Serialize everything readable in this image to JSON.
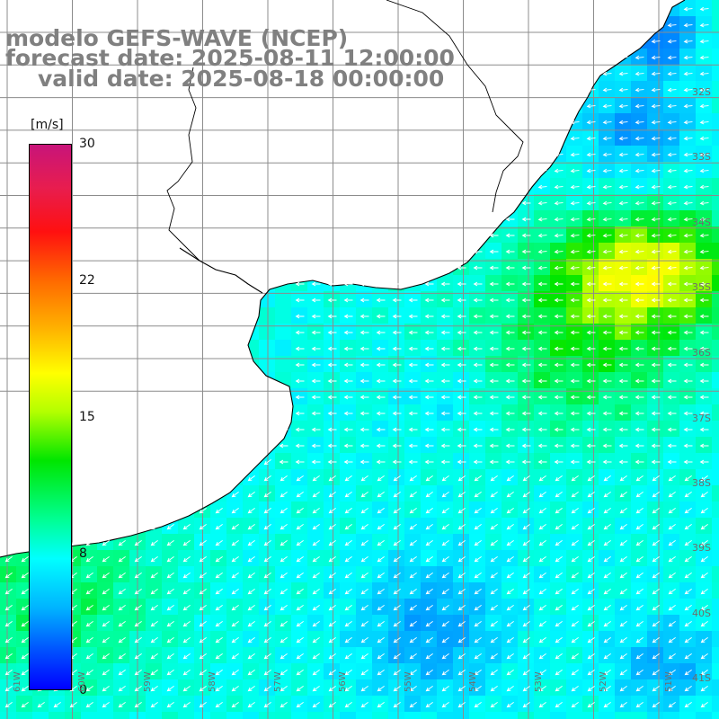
{
  "title": {
    "line1": "modelo GEFS-WAVE (NCEP)",
    "line2": "forecast date: 2025-08-11 12:00:00",
    "line3": "valid date: 2025-08-18 00:00:00"
  },
  "colorbar": {
    "unit": "[m/s]",
    "ticks": [
      "30",
      "22",
      "15",
      "8",
      "0"
    ],
    "tick_values": [
      30,
      22,
      15,
      8,
      0
    ],
    "colors": [
      "#0000ff",
      "#0050ff",
      "#00b4ff",
      "#00ffff",
      "#00ff96",
      "#00e600",
      "#b4ff00",
      "#ffff00",
      "#ffb400",
      "#ff6a00",
      "#ff1010",
      "#e81d4e",
      "#c8147a"
    ]
  },
  "map": {
    "lat_labels": [
      "32S",
      "33S",
      "34S",
      "35S",
      "36S",
      "37S",
      "38S",
      "39S",
      "40S",
      "41S"
    ],
    "lon_labels": [
      "61W",
      "60W",
      "59W",
      "58W",
      "57W",
      "56W",
      "55W",
      "54W",
      "53W",
      "52W",
      "51W"
    ],
    "wind_flow": "predominantly westward (easterly winds); southwestward near the southern coast",
    "wind_speed_range_ms": [
      5,
      15
    ],
    "max_wind_area": "offshore east of the river mouth near 34S-36S, yellow-green (~13-15 m/s)",
    "min_wind_area": "near 33S-34S east coast and 40S-41S offshore, blue (~5-6 m/s)",
    "land_color": "#ffffff",
    "grid_color": "#8c8c8c",
    "coast_color": "#000000",
    "arrow_color": "#ffffff"
  }
}
